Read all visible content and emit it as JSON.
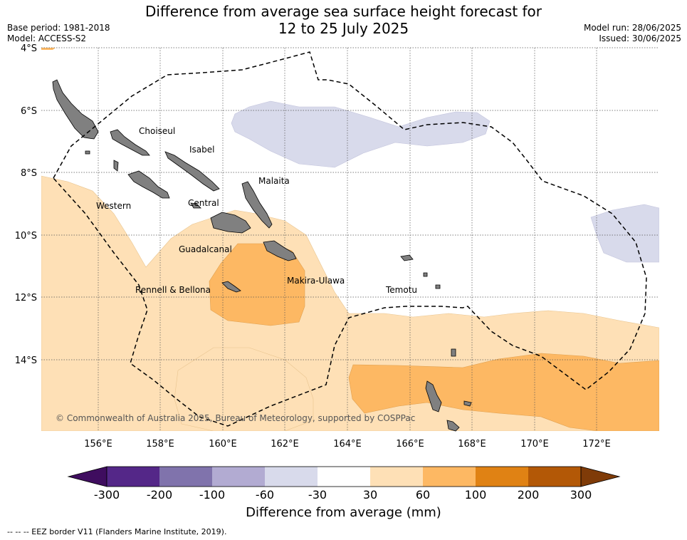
{
  "title": {
    "line1": "Difference from average sea surface height forecast for",
    "line2": "12 to 25 July 2025"
  },
  "meta": {
    "base_period": "Base period: 1981-2018",
    "model": "Model: ACCESS-S2",
    "model_run": "Model run: 28/06/2025",
    "issued": "Issued: 30/06/2025"
  },
  "axes": {
    "lat_labels": [
      "4°S",
      "6°S",
      "8°S",
      "10°S",
      "12°S",
      "14°S"
    ],
    "lon_labels": [
      "156°E",
      "158°E",
      "160°E",
      "162°E",
      "164°E",
      "166°E",
      "168°E",
      "170°E",
      "172°E"
    ],
    "gridlines": "dotted"
  },
  "places": {
    "choiseul": "Choiseul",
    "isabel": "Isabel",
    "malaita": "Malaita",
    "western": "Western",
    "central": "Central",
    "guadalcanal": "Guadalcanal",
    "makira": "Makira-Ulawa",
    "rennell": "Rennell & Bellona",
    "temotu": "Temotu"
  },
  "copyright": "© Commonwealth of Australia 2025, Bureau of Meteorology, supported by COSPPac",
  "colorbar": {
    "title": "Difference from average (mm)",
    "ticks": [
      "-300",
      "-200",
      "-100",
      "-60",
      "-30",
      "30",
      "60",
      "100",
      "200",
      "300"
    ],
    "colors": [
      "#3f0d5f",
      "#542788",
      "#8073ac",
      "#b2abd2",
      "#d8daeb",
      "#ffffff",
      "#fee0b6",
      "#fdb863",
      "#e08214",
      "#b35806",
      "#7f3b08"
    ]
  },
  "eez_note": "--  --  -- EEZ border V11 (Flanders Marine Institute, 2019)."
}
